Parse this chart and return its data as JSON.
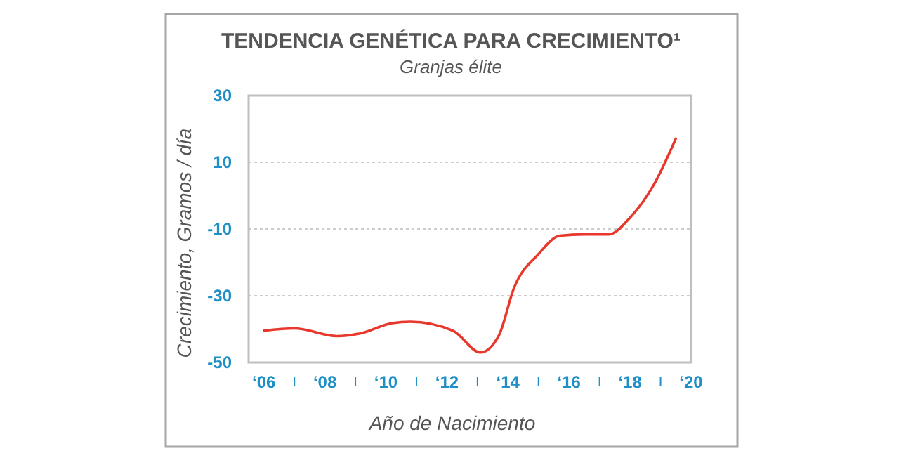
{
  "chart_data": {
    "type": "line",
    "title": "TENDENCIA GENÉTICA PARA CRECIMIENTO¹",
    "subtitle": "Granjas élite",
    "xlabel": "Año de Nacimiento",
    "ylabel": "Crecimiento, Gramos / día",
    "x": [
      6,
      7,
      8.4,
      9.2,
      10.2,
      10.8,
      12.2,
      13.1,
      13.7,
      14.2,
      15,
      15.7,
      16.5,
      17.3,
      18,
      18.8,
      19.5
    ],
    "series": [
      {
        "color": "#e8382c",
        "values": [
          -40.5,
          -39.8,
          -42.1,
          -41.2,
          -38.2,
          -37.8,
          -40.5,
          -47,
          -41.9,
          -27.6,
          -17.5,
          -12,
          -11.6,
          -11.6,
          -6.6,
          3.6,
          17.1
        ]
      }
    ],
    "xlim": [
      5.5,
      20
    ],
    "ylim": [
      -50,
      30
    ],
    "xticks": [
      {
        "value": 6,
        "label": "‘06"
      },
      {
        "value": 7,
        "label": null
      },
      {
        "value": 8,
        "label": "‘08"
      },
      {
        "value": 9,
        "label": null
      },
      {
        "value": 10,
        "label": "‘10"
      },
      {
        "value": 11,
        "label": null
      },
      {
        "value": 12,
        "label": "‘12"
      },
      {
        "value": 13,
        "label": null
      },
      {
        "value": 14,
        "label": "‘14"
      },
      {
        "value": 15,
        "label": null
      },
      {
        "value": 16,
        "label": "‘16"
      },
      {
        "value": 17,
        "label": null
      },
      {
        "value": 18,
        "label": "‘18"
      },
      {
        "value": 19,
        "label": null
      },
      {
        "value": 20,
        "label": "‘20"
      }
    ],
    "yticks": [
      30,
      10,
      -10,
      -30,
      -50
    ],
    "grid": "y",
    "marker": "none",
    "line_style": "solid"
  }
}
